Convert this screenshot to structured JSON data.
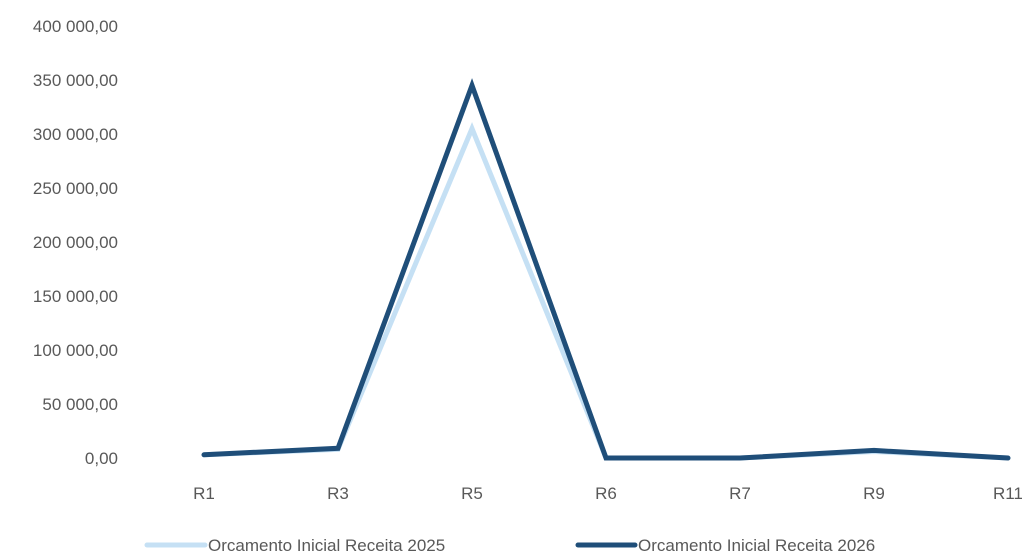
{
  "chart_data": {
    "type": "line",
    "title": "",
    "xlabel": "",
    "ylabel": "",
    "categories": [
      "R1",
      "R3",
      "R5",
      "R6",
      "R7",
      "R9",
      "R11"
    ],
    "ylim": [
      0,
      400000
    ],
    "yticks": [
      0,
      50000,
      100000,
      150000,
      200000,
      250000,
      300000,
      350000,
      400000
    ],
    "ytick_labels": [
      "0,00",
      "50 000,00",
      "100 000,00",
      "150 000,00",
      "200 000,00",
      "250 000,00",
      "300 000,00",
      "350 000,00",
      "400 000,00"
    ],
    "grid": false,
    "legend_position": "bottom",
    "series": [
      {
        "name": "Orcamento Inicial  Receita 2025",
        "color": "#c5e0f4",
        "values": [
          3000,
          8000,
          305000,
          0,
          0,
          6000,
          0
        ]
      },
      {
        "name": "Orcamento Inicial Receita 2026",
        "color": "#1f4e79",
        "values": [
          3000,
          9000,
          345000,
          0,
          0,
          7000,
          0
        ]
      }
    ]
  }
}
